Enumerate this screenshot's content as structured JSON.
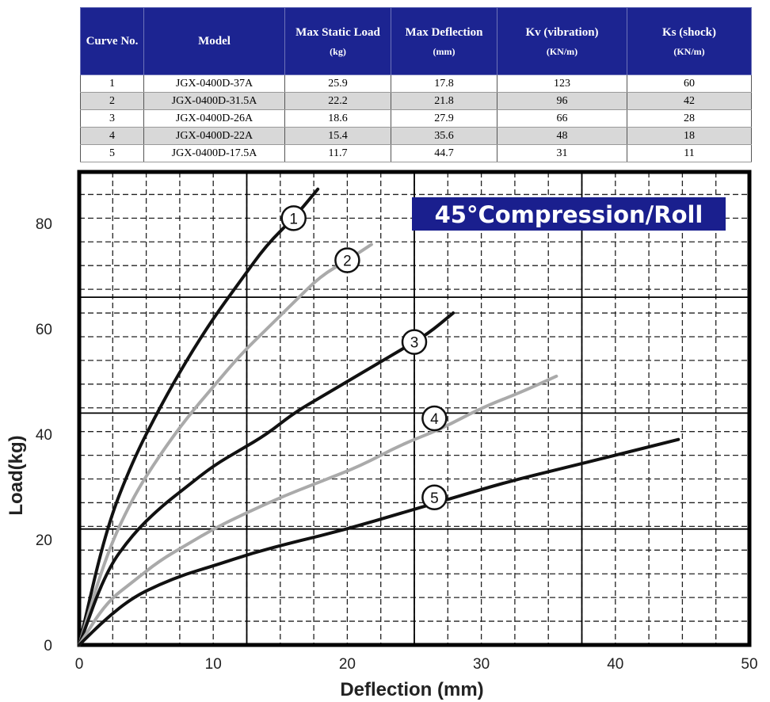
{
  "table": {
    "headers": [
      {
        "title": "Curve No.",
        "unit": ""
      },
      {
        "title": "Model",
        "unit": ""
      },
      {
        "title": "Max Static Load",
        "unit": "(kg)"
      },
      {
        "title": "Max Deflection",
        "unit": "(mm)"
      },
      {
        "title": "Kv (vibration)",
        "unit": "(KN/m)"
      },
      {
        "title": "Ks (shock)",
        "unit": "(KN/m)"
      }
    ],
    "rows": [
      [
        "1",
        "JGX-0400D-37A",
        "25.9",
        "17.8",
        "123",
        "60"
      ],
      [
        "2",
        "JGX-0400D-31.5A",
        "22.2",
        "21.8",
        "96",
        "42"
      ],
      [
        "3",
        "JGX-0400D-26A",
        "18.6",
        "27.9",
        "66",
        "28"
      ],
      [
        "4",
        "JGX-0400D-22A",
        "15.4",
        "35.6",
        "48",
        "18"
      ],
      [
        "5",
        "JGX-0400D-17.5A",
        "11.7",
        "44.7",
        "31",
        "11"
      ]
    ]
  },
  "chart_data": {
    "type": "line",
    "title": "45°Compression/Roll",
    "xlabel": "Deflection (mm)",
    "ylabel": "Load(kg)",
    "xlim": [
      0,
      50
    ],
    "ylim": [
      0,
      88
    ],
    "xticks": [
      "0",
      "10",
      "20",
      "30",
      "40",
      "50"
    ],
    "yticks": [
      "0",
      "20",
      "40",
      "60",
      "80"
    ],
    "grid": true,
    "series": [
      {
        "name": "1",
        "color": "#111111",
        "x": [
          0,
          2,
          4,
          6,
          8,
          10,
          12,
          14,
          16,
          17.8
        ],
        "y": [
          0,
          22,
          35,
          45,
          54,
          62,
          69,
          76,
          81,
          86.5
        ]
      },
      {
        "name": "2",
        "color": "#aaaaaa",
        "x": [
          0,
          2,
          4,
          6,
          8,
          10,
          12,
          14,
          16,
          18,
          20,
          21.8
        ],
        "y": [
          0,
          17,
          28,
          36,
          43,
          49,
          55,
          60,
          65,
          70,
          73,
          76
        ]
      },
      {
        "name": "3",
        "color": "#111111",
        "x": [
          0,
          2,
          4,
          6,
          8,
          10,
          12,
          14,
          16,
          18,
          20,
          22,
          24,
          26,
          27.9
        ],
        "y": [
          0,
          14,
          21,
          26,
          30,
          34,
          37,
          40,
          44,
          47,
          50,
          53,
          56,
          59,
          63
        ]
      },
      {
        "name": "4",
        "color": "#aaaaaa",
        "x": [
          0,
          2,
          4,
          6,
          8,
          10,
          12,
          15,
          18,
          21,
          24,
          27,
          30,
          33,
          35.6
        ],
        "y": [
          0,
          8,
          12,
          16,
          19,
          22,
          24.5,
          28,
          31,
          34,
          38,
          41,
          45,
          48,
          51
        ]
      },
      {
        "name": "5",
        "color": "#111111",
        "x": [
          0,
          2,
          4,
          6,
          8,
          10,
          13,
          16,
          20,
          24,
          28,
          32,
          36,
          40,
          44.7
        ],
        "y": [
          0,
          5,
          9,
          11.5,
          13.5,
          15,
          17.5,
          19.5,
          22,
          25,
          28,
          31,
          33.5,
          36,
          39
        ]
      }
    ]
  }
}
